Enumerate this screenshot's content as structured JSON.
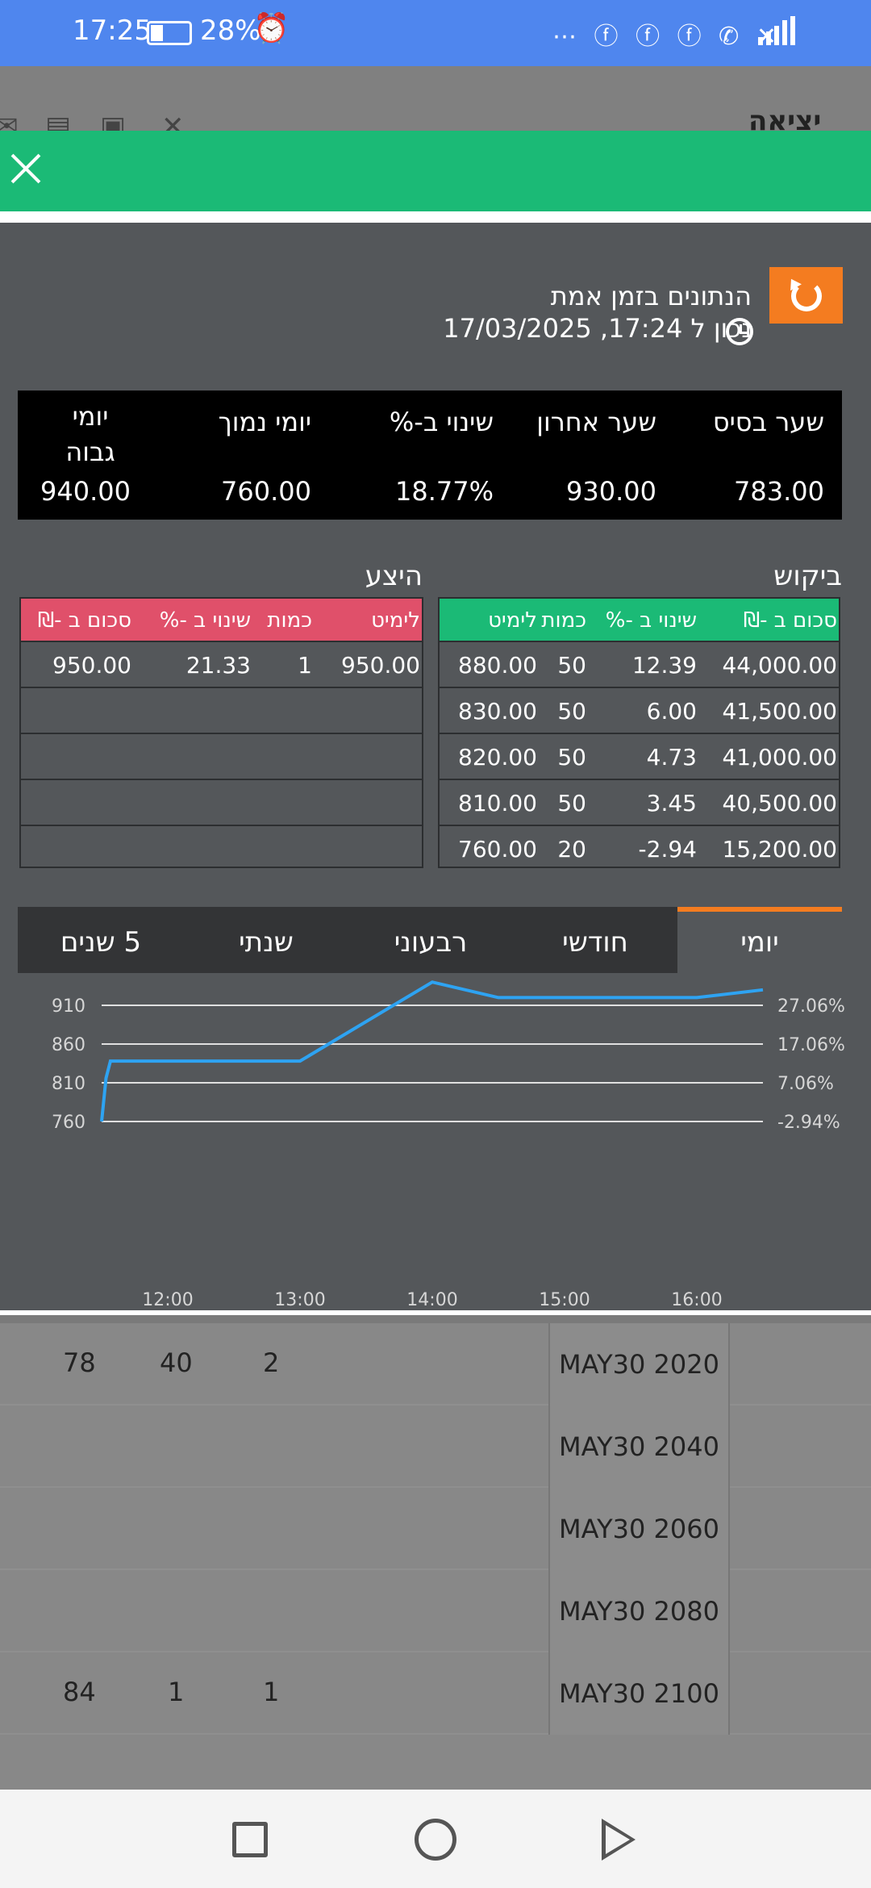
{
  "status_bar": {
    "time": "17:25",
    "battery": "28%",
    "icons": [
      "alarm-icon",
      "facebook-icon",
      "facebook-icon",
      "facebook-icon",
      "whatsapp-icon",
      "missed-call-icon",
      "4g-icon",
      "signal-icon"
    ]
  },
  "background": {
    "exit_label": "יציאה",
    "rows": [
      {
        "label": "MAY30 2020",
        "c1": "78",
        "c2": "40",
        "c3": "2"
      },
      {
        "label": "MAY30 2040",
        "c1": "",
        "c2": "",
        "c3": ""
      },
      {
        "label": "MAY30 2060",
        "c1": "",
        "c2": "",
        "c3": ""
      },
      {
        "label": "MAY30 2080",
        "c1": "",
        "c2": "",
        "c3": ""
      },
      {
        "label": "MAY30 2100",
        "c1": "84",
        "c2": "1",
        "c3": "1"
      }
    ]
  },
  "modal": {
    "title": "הנתונים בזמן אמת",
    "updated": "נכון ל 17:24, 17/03/2025",
    "summary": {
      "headers": [
        "שער בסיס",
        "שער אחרון",
        "שינוי ב-%",
        "יומי נמוך",
        "יומי גבוה"
      ],
      "values": [
        "783.00",
        "930.00",
        "18.77%",
        "760.00",
        "940.00"
      ]
    },
    "bid": {
      "title": "ביקוש",
      "headers": [
        "סכום ב -₪",
        "שינוי ב -%",
        "כמות",
        "לימיט"
      ],
      "rows": [
        [
          "44,000.00",
          "12.39",
          "50",
          "880.00"
        ],
        [
          "41,500.00",
          "6.00",
          "50",
          "830.00"
        ],
        [
          "41,000.00",
          "4.73",
          "50",
          "820.00"
        ],
        [
          "40,500.00",
          "3.45",
          "50",
          "810.00"
        ],
        [
          "15,200.00",
          "-2.94",
          "20",
          "760.00"
        ]
      ]
    },
    "ask": {
      "title": "היצע",
      "headers": [
        "לימיט",
        "כמות",
        "שינוי ב -%",
        "סכום ב -₪"
      ],
      "rows": [
        [
          "950.00",
          "1",
          "21.33",
          "950.00"
        ],
        [
          "",
          "",
          "",
          ""
        ],
        [
          "",
          "",
          "",
          ""
        ],
        [
          "",
          "",
          "",
          ""
        ],
        [
          "",
          "",
          "",
          ""
        ]
      ]
    },
    "tabs": [
      "יומי",
      "חודשי",
      "רבעוני",
      "שנתי",
      "5 שנים"
    ],
    "active_tab": "יומי"
  },
  "colors": {
    "accent": "#f47c20",
    "bid_header": "#1bba76",
    "ask_header": "#e0506a",
    "line": "#2ea3f2",
    "panel": "#54575a"
  },
  "chart_data": {
    "type": "line",
    "x": [
      "11:30",
      "11:32",
      "11:34",
      "13:00",
      "14:00",
      "14:30",
      "15:00",
      "16:00",
      "16:30"
    ],
    "values": [
      760,
      816,
      838,
      838,
      940,
      920,
      920,
      920,
      930
    ],
    "xticks": [
      "12:00",
      "13:00",
      "14:00",
      "15:00",
      "16:00"
    ],
    "yticks_left": [
      "760",
      "810",
      "860",
      "910"
    ],
    "yticks_right": [
      "-2.94%",
      "7.06%",
      "17.06%",
      "27.06%"
    ],
    "ylim": [
      760,
      940
    ]
  }
}
